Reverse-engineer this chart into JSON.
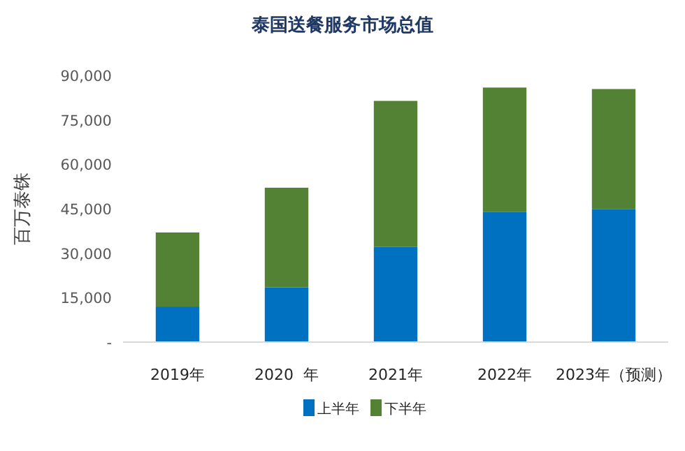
{
  "chart_data": {
    "type": "bar",
    "title": "泰国送餐服务市场总值",
    "ylabel": "百万泰铢",
    "categories": [
      "2019年",
      "2020  年",
      "2021年",
      "2022年",
      "2023年（预测）"
    ],
    "stacked": true,
    "series": [
      {
        "name": "上半年",
        "color": "#0070c0",
        "values": [
          12000,
          18500,
          32200,
          44000,
          44800
        ]
      },
      {
        "name": "下半年",
        "color": "#548235",
        "values": [
          25000,
          33600,
          49200,
          41900,
          40600
        ]
      }
    ],
    "ylim": [
      0,
      90000
    ],
    "yticks": [
      {
        "value": 0,
        "label": "-"
      },
      {
        "value": 15000,
        "label": "15,000"
      },
      {
        "value": 30000,
        "label": "30,000"
      },
      {
        "value": 45000,
        "label": "45,000"
      },
      {
        "value": 60000,
        "label": "60,000"
      },
      {
        "value": 75000,
        "label": "75,000"
      },
      {
        "value": 90000,
        "label": "90,000"
      }
    ],
    "grid": false,
    "legend": "bottom"
  }
}
